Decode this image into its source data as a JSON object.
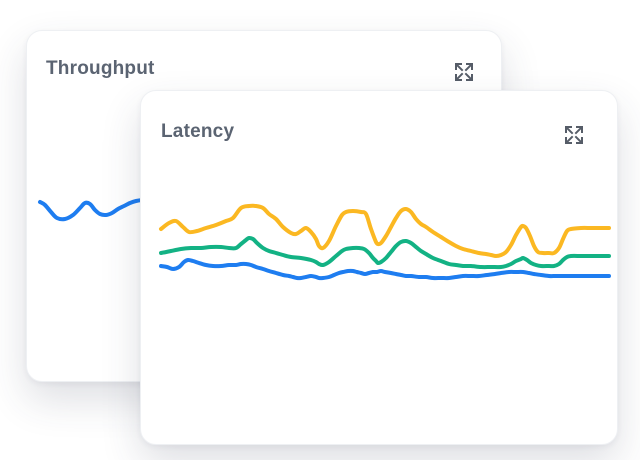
{
  "page": {
    "background": "#ffffff"
  },
  "colors": {
    "card_background": "#ffffff",
    "card_border": "#eef0f3",
    "title_text": "#5b6472",
    "icon": "#565d68",
    "line_blue": "#1e7df0",
    "line_yellow": "#fbb822",
    "line_green": "#13b284"
  },
  "cards": [
    {
      "id": "throughput",
      "title": "Throughput",
      "expand_icon": "expand-icon"
    },
    {
      "id": "latency",
      "title": "Latency",
      "expand_icon": "expand-icon"
    }
  ],
  "chart_data": [
    {
      "id": "throughput",
      "type": "line",
      "title": "Throughput",
      "axes_visible": false,
      "grid": false,
      "legend": null,
      "units": "px",
      "stroke_width": 4,
      "series": [
        {
          "name": "series-1",
          "color": "#1e7df0",
          "points": [
            [
              13,
              21
            ],
            [
              18,
              24
            ],
            [
              24,
              31
            ],
            [
              30,
              37
            ],
            [
              38,
              38
            ],
            [
              46,
              34
            ],
            [
              53,
              27
            ],
            [
              58,
              22
            ],
            [
              63,
              23
            ],
            [
              68,
              29
            ],
            [
              73,
              33
            ],
            [
              79,
              34
            ],
            [
              85,
              32
            ],
            [
              91,
              28
            ],
            [
              97,
              25
            ],
            [
              103,
              22
            ],
            [
              109,
              20
            ],
            [
              115,
              19
            ],
            [
              123,
              18
            ],
            [
              131,
              18
            ],
            [
              150,
              17
            ],
            [
              175,
              16
            ],
            [
              200,
              17
            ],
            [
              230,
              16
            ],
            [
              260,
              17
            ],
            [
              290,
              16
            ],
            [
              320,
              17
            ],
            [
              350,
              16
            ],
            [
              380,
              17
            ],
            [
              410,
              16
            ],
            [
              440,
              17
            ],
            [
              460,
              16
            ]
          ]
        }
      ]
    },
    {
      "id": "latency",
      "type": "line",
      "title": "Latency",
      "axes_visible": false,
      "grid": false,
      "legend": null,
      "units": "px",
      "stroke_width": 4,
      "series": [
        {
          "name": "series-top",
          "color": "#fbb822",
          "points": [
            [
              20,
              38
            ],
            [
              28,
              32
            ],
            [
              35,
              30
            ],
            [
              42,
              36
            ],
            [
              48,
              41
            ],
            [
              56,
              40
            ],
            [
              65,
              37
            ],
            [
              75,
              34
            ],
            [
              85,
              30
            ],
            [
              92,
              27
            ],
            [
              100,
              17
            ],
            [
              108,
              15
            ],
            [
              115,
              15
            ],
            [
              122,
              17
            ],
            [
              128,
              23
            ],
            [
              135,
              28
            ],
            [
              142,
              36
            ],
            [
              150,
              42
            ],
            [
              155,
              43
            ],
            [
              160,
              40
            ],
            [
              165,
              37
            ],
            [
              170,
              41
            ],
            [
              175,
              48
            ],
            [
              178,
              55
            ],
            [
              182,
              57
            ],
            [
              188,
              50
            ],
            [
              195,
              35
            ],
            [
              201,
              24
            ],
            [
              205,
              21
            ],
            [
              212,
              20
            ],
            [
              220,
              21
            ],
            [
              225,
              23
            ],
            [
              230,
              38
            ],
            [
              235,
              51
            ],
            [
              237,
              53
            ],
            [
              240,
              52
            ],
            [
              245,
              45
            ],
            [
              250,
              36
            ],
            [
              255,
              27
            ],
            [
              260,
              20
            ],
            [
              265,
              18
            ],
            [
              270,
              21
            ],
            [
              275,
              28
            ],
            [
              280,
              33
            ],
            [
              285,
              36
            ],
            [
              292,
              41
            ],
            [
              300,
              46
            ],
            [
              308,
              51
            ],
            [
              315,
              55
            ],
            [
              322,
              58
            ],
            [
              330,
              60
            ],
            [
              338,
              62
            ],
            [
              345,
              63
            ],
            [
              350,
              64
            ],
            [
              355,
              65
            ],
            [
              360,
              64
            ],
            [
              365,
              61
            ],
            [
              370,
              54
            ],
            [
              375,
              44
            ],
            [
              380,
              36
            ],
            [
              382,
              35
            ],
            [
              385,
              37
            ],
            [
              389,
              45
            ],
            [
              393,
              55
            ],
            [
              397,
              61
            ],
            [
              402,
              62
            ],
            [
              408,
              62
            ],
            [
              413,
              62
            ],
            [
              418,
              57
            ],
            [
              422,
              48
            ],
            [
              426,
              40
            ],
            [
              430,
              38
            ],
            [
              440,
              37
            ],
            [
              450,
              37
            ],
            [
              460,
              37
            ],
            [
              468,
              37
            ]
          ]
        },
        {
          "name": "series-middle",
          "color": "#13b284",
          "points": [
            [
              20,
              62
            ],
            [
              30,
              60
            ],
            [
              40,
              58
            ],
            [
              50,
              57
            ],
            [
              60,
              57
            ],
            [
              70,
              56
            ],
            [
              80,
              56
            ],
            [
              88,
              57
            ],
            [
              95,
              57
            ],
            [
              100,
              53
            ],
            [
              105,
              49
            ],
            [
              108,
              47
            ],
            [
              112,
              48
            ],
            [
              116,
              52
            ],
            [
              122,
              57
            ],
            [
              128,
              60
            ],
            [
              135,
              62
            ],
            [
              142,
              64
            ],
            [
              150,
              66
            ],
            [
              160,
              67
            ],
            [
              170,
              69
            ],
            [
              175,
              71
            ],
            [
              178,
              73
            ],
            [
              182,
              74
            ],
            [
              188,
              71
            ],
            [
              195,
              65
            ],
            [
              201,
              60
            ],
            [
              205,
              58
            ],
            [
              212,
              57
            ],
            [
              218,
              57
            ],
            [
              223,
              58
            ],
            [
              228,
              62
            ],
            [
              232,
              67
            ],
            [
              235,
              70
            ],
            [
              237,
              72
            ],
            [
              240,
              71
            ],
            [
              245,
              67
            ],
            [
              250,
              61
            ],
            [
              255,
              55
            ],
            [
              260,
              51
            ],
            [
              265,
              50
            ],
            [
              270,
              52
            ],
            [
              275,
              56
            ],
            [
              280,
              60
            ],
            [
              285,
              63
            ],
            [
              292,
              67
            ],
            [
              300,
              70
            ],
            [
              308,
              73
            ],
            [
              315,
              74
            ],
            [
              322,
              75
            ],
            [
              330,
              75
            ],
            [
              340,
              76
            ],
            [
              350,
              76
            ],
            [
              360,
              76
            ],
            [
              365,
              75
            ],
            [
              370,
              73
            ],
            [
              375,
              70
            ],
            [
              380,
              68
            ],
            [
              382,
              67
            ],
            [
              386,
              69
            ],
            [
              390,
              72
            ],
            [
              395,
              74
            ],
            [
              400,
              75
            ],
            [
              408,
              75
            ],
            [
              413,
              75
            ],
            [
              418,
              73
            ],
            [
              422,
              69
            ],
            [
              426,
              66
            ],
            [
              430,
              65
            ],
            [
              440,
              65
            ],
            [
              450,
              65
            ],
            [
              460,
              65
            ],
            [
              468,
              65
            ]
          ]
        },
        {
          "name": "series-bottom",
          "color": "#1e7df0",
          "points": [
            [
              20,
              75
            ],
            [
              26,
              76
            ],
            [
              32,
              78
            ],
            [
              38,
              76
            ],
            [
              43,
              71
            ],
            [
              47,
              69
            ],
            [
              52,
              70
            ],
            [
              58,
              72
            ],
            [
              65,
              74
            ],
            [
              72,
              75
            ],
            [
              80,
              75
            ],
            [
              88,
              74
            ],
            [
              95,
              74
            ],
            [
              100,
              73
            ],
            [
              105,
              73
            ],
            [
              110,
              74
            ],
            [
              115,
              76
            ],
            [
              122,
              78
            ],
            [
              128,
              80
            ],
            [
              135,
              82
            ],
            [
              142,
              84
            ],
            [
              148,
              85
            ],
            [
              152,
              86
            ],
            [
              156,
              87
            ],
            [
              160,
              87
            ],
            [
              165,
              86
            ],
            [
              170,
              85
            ],
            [
              175,
              86
            ],
            [
              178,
              87
            ],
            [
              182,
              87
            ],
            [
              188,
              86
            ],
            [
              193,
              84
            ],
            [
              198,
              82
            ],
            [
              202,
              81
            ],
            [
              207,
              80
            ],
            [
              212,
              80
            ],
            [
              216,
              81
            ],
            [
              220,
              82
            ],
            [
              224,
              83
            ],
            [
              228,
              82
            ],
            [
              232,
              81
            ],
            [
              236,
              81
            ],
            [
              240,
              80
            ],
            [
              244,
              81
            ],
            [
              250,
              82
            ],
            [
              255,
              83
            ],
            [
              260,
              84
            ],
            [
              265,
              85
            ],
            [
              270,
              85
            ],
            [
              278,
              86
            ],
            [
              285,
              86
            ],
            [
              292,
              87
            ],
            [
              300,
              87
            ],
            [
              308,
              87
            ],
            [
              315,
              86
            ],
            [
              322,
              85
            ],
            [
              330,
              85
            ],
            [
              338,
              85
            ],
            [
              346,
              84
            ],
            [
              354,
              83
            ],
            [
              360,
              82
            ],
            [
              368,
              81
            ],
            [
              375,
              81
            ],
            [
              382,
              81
            ],
            [
              388,
              82
            ],
            [
              393,
              83
            ],
            [
              400,
              84
            ],
            [
              408,
              85
            ],
            [
              415,
              85
            ],
            [
              425,
              85
            ],
            [
              435,
              85
            ],
            [
              445,
              85
            ],
            [
              455,
              85
            ],
            [
              468,
              85
            ]
          ]
        }
      ]
    }
  ]
}
